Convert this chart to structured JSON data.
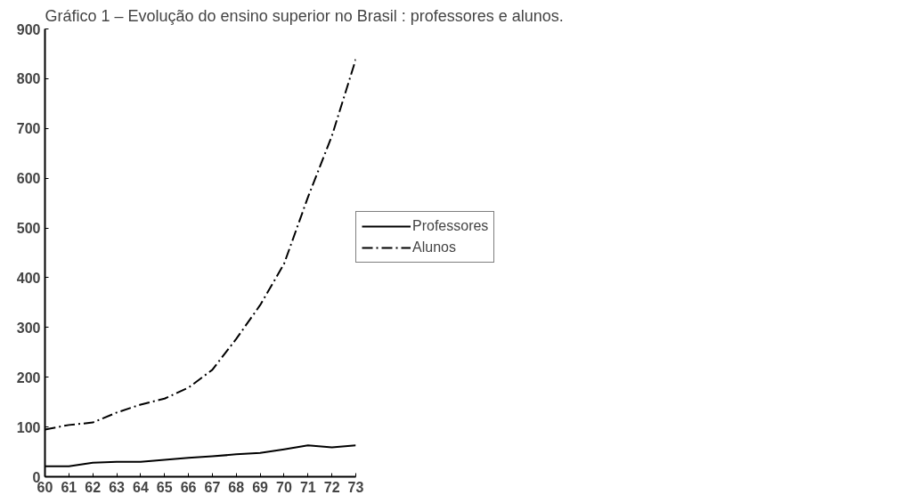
{
  "chart_data": {
    "type": "line",
    "title": "Gráfico 1 – Evolução do ensino superior no Brasil : professores e alunos.",
    "x": [
      60,
      61,
      62,
      63,
      64,
      65,
      66,
      67,
      68,
      69,
      70,
      71,
      72,
      73
    ],
    "series": [
      {
        "name": "Professores",
        "color": "#000000",
        "line_style": "solid",
        "values": [
          21,
          21,
          28,
          30,
          30,
          34,
          38,
          41,
          45,
          48,
          55,
          63,
          59,
          63
        ]
      },
      {
        "name": "Alunos",
        "color": "#000000",
        "line_style": "dashdot",
        "values": [
          95,
          104,
          109,
          129,
          145,
          157,
          179,
          215,
          277,
          345,
          428,
          562,
          685,
          839
        ]
      }
    ],
    "xlim": [
      60,
      73
    ],
    "xticks": [
      60,
      61,
      62,
      63,
      64,
      65,
      66,
      67,
      68,
      69,
      70,
      71,
      72,
      73
    ],
    "ylim": [
      0,
      900
    ],
    "yticks": [
      0,
      100,
      200,
      300,
      400,
      500,
      600,
      700,
      800,
      900
    ],
    "grid": false,
    "legend": "right",
    "marker": "none"
  }
}
